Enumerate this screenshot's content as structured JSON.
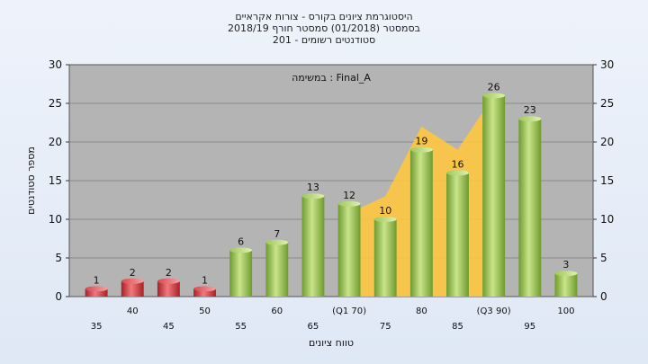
{
  "chart_data": {
    "type": "bar",
    "title_lines": [
      "היסטוגרמת ציונים בקורס - צורות אקראיים",
      "בסמסטר  (01/2018)  סמסטר חורף 2018/19",
      "סטודנטים רשומים - 201"
    ],
    "annotation": "במשימה : Final_A",
    "xlabel": "טווח ציונים",
    "ylabel": "מספר סטודנטים",
    "ylim": [
      0,
      30
    ],
    "yticks": [
      0,
      5,
      10,
      15,
      20,
      25,
      30
    ],
    "grid": true,
    "categories": [
      "35",
      "40",
      "45",
      "50",
      "55",
      "60",
      "65",
      "(Q1 70)",
      "75",
      "80",
      "85",
      "(Q3 90)",
      "95",
      "100"
    ],
    "values": [
      1,
      2,
      2,
      1,
      6,
      7,
      13,
      12,
      10,
      19,
      16,
      26,
      23,
      3
    ],
    "value_labels": [
      "1",
      "2",
      "2",
      "1",
      "6",
      "7",
      "13",
      "12",
      "10",
      "19",
      "16",
      "26",
      "23",
      "3"
    ],
    "bar_colors": [
      "#d0343a",
      "#d0343a",
      "#d0343a",
      "#d0343a",
      "#8fb84a",
      "#8fb84a",
      "#8fb84a",
      "#8fb84a",
      "#8fb84a",
      "#8fb84a",
      "#8fb84a",
      "#8fb84a",
      "#8fb84a",
      "#8fb84a"
    ],
    "band_color": "#ffc640",
    "band_range": [
      "(Q1 70)",
      "(Q3 90)"
    ]
  }
}
